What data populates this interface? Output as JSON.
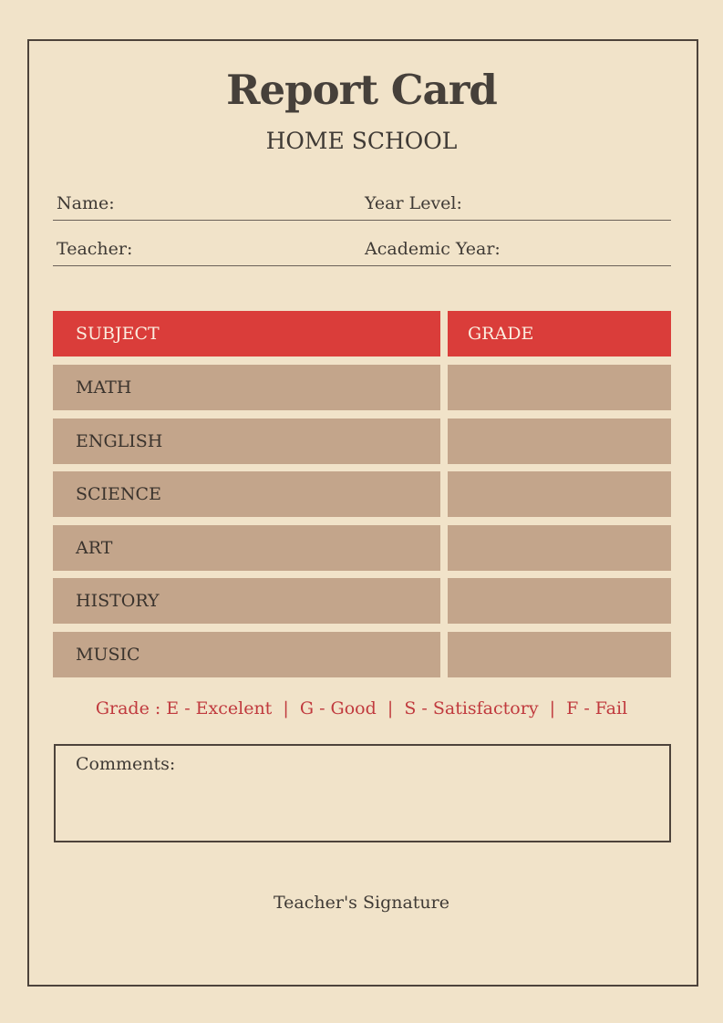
{
  "header": {
    "title": "Report Card",
    "subtitle": "HOME SCHOOL"
  },
  "fields": {
    "name": "Name:",
    "year_level": "Year Level:",
    "teacher": "Teacher:",
    "academic_year": "Academic Year:"
  },
  "table": {
    "headers": {
      "subject": "SUBJECT",
      "grade": "GRADE"
    },
    "rows": [
      {
        "subject": "MATH",
        "grade": ""
      },
      {
        "subject": "ENGLISH",
        "grade": ""
      },
      {
        "subject": "SCIENCE",
        "grade": ""
      },
      {
        "subject": "ART",
        "grade": ""
      },
      {
        "subject": "HISTORY",
        "grade": ""
      },
      {
        "subject": "MUSIC",
        "grade": ""
      }
    ]
  },
  "legend": "Grade : E - Excelent  |  G - Good  |  S - Satisfactory  |  F - Fail",
  "comments": {
    "label": "Comments:",
    "value": ""
  },
  "signature": "Teacher's Signature",
  "colors": {
    "background": "#f1e3c9",
    "header": "#da3d3a",
    "row": "#c3a58b",
    "legend": "#c0393d",
    "text": "#3f3a35"
  }
}
